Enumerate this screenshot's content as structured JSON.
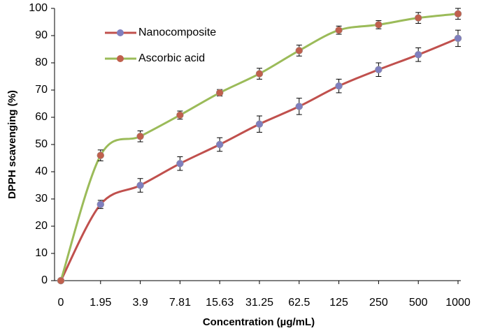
{
  "chart_data": {
    "type": "line",
    "x_label": "Concentration (µg/mL)",
    "y_label": "DPPH scavenging (%)",
    "categories": [
      "0",
      "1.95",
      "3.9",
      "7.81",
      "15.63",
      "31.25",
      "62.5",
      "125",
      "250",
      "500",
      "1000"
    ],
    "series": [
      {
        "name": "Nanocomposite",
        "color": "#c0504d",
        "marker_color": "#7f7fbf",
        "values": [
          0,
          28,
          35,
          43,
          50,
          57.5,
          64,
          71.5,
          77.5,
          83,
          89
        ],
        "errors": [
          0.5,
          1.5,
          2.5,
          2.5,
          2.5,
          3,
          3,
          2.5,
          2.5,
          2.5,
          3
        ]
      },
      {
        "name": "Ascorbic acid",
        "color": "#9bbb59",
        "marker_color": "#c0604d",
        "values": [
          0,
          46,
          53,
          60.8,
          69,
          76,
          84.5,
          92,
          94,
          96.5,
          98
        ],
        "errors": [
          0.5,
          2,
          2,
          1.5,
          1.2,
          2,
          2,
          1.5,
          1.5,
          2,
          2
        ]
      }
    ],
    "ylim": [
      0,
      100
    ],
    "yticks": [
      0,
      10,
      20,
      30,
      40,
      50,
      60,
      70,
      80,
      90,
      100
    ],
    "grid": false,
    "legend_position": "upper-left"
  }
}
